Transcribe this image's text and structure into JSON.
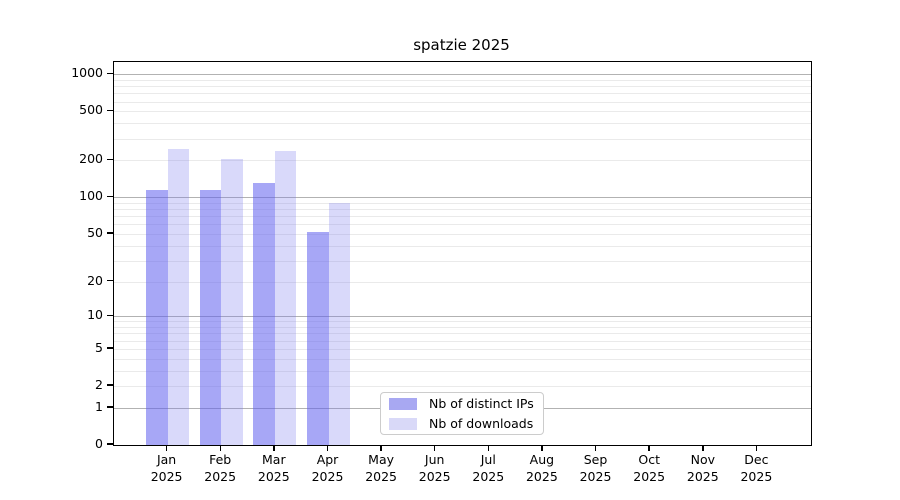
{
  "chart_data": {
    "type": "bar",
    "title": "spatzie 2025",
    "categories": [
      "Jan",
      "Feb",
      "Mar",
      "Apr",
      "May",
      "Jun",
      "Jul",
      "Aug",
      "Sep",
      "Oct",
      "Nov",
      "Dec"
    ],
    "category_year": "2025",
    "series": [
      {
        "name": "Nb of distinct IPs",
        "legend_color": "#a8a8f2",
        "bar_color": "rgba(95,95,238,0.55)",
        "values": [
          115,
          115,
          131,
          52,
          null,
          null,
          null,
          null,
          null,
          null,
          null,
          null
        ]
      },
      {
        "name": "Nb of downloads",
        "legend_color": "#d9d9f8",
        "bar_color": "rgba(120,120,238,0.28)",
        "values": [
          248,
          207,
          237,
          90,
          null,
          null,
          null,
          null,
          null,
          null,
          null,
          null
        ]
      }
    ],
    "y_axis": {
      "scale": "log1p",
      "tick_values": [
        1000,
        500,
        200,
        100,
        50,
        20,
        10,
        5,
        2,
        1,
        0
      ],
      "major_gridlines": [
        1,
        10,
        100,
        1000
      ],
      "minor_gridlines": [
        2,
        3,
        4,
        5,
        6,
        7,
        8,
        9,
        20,
        30,
        40,
        50,
        60,
        70,
        80,
        90,
        200,
        300,
        400,
        500,
        600,
        700,
        800,
        900
      ],
      "ylim": [
        0,
        1250
      ]
    },
    "xlabel": "",
    "ylabel": "",
    "grid": true,
    "legend_position": "lower-center"
  },
  "colors": {
    "major_grid": "#b2b2b2",
    "minor_grid": "#eaeaea",
    "axis": "#000000",
    "background": "#ffffff"
  }
}
